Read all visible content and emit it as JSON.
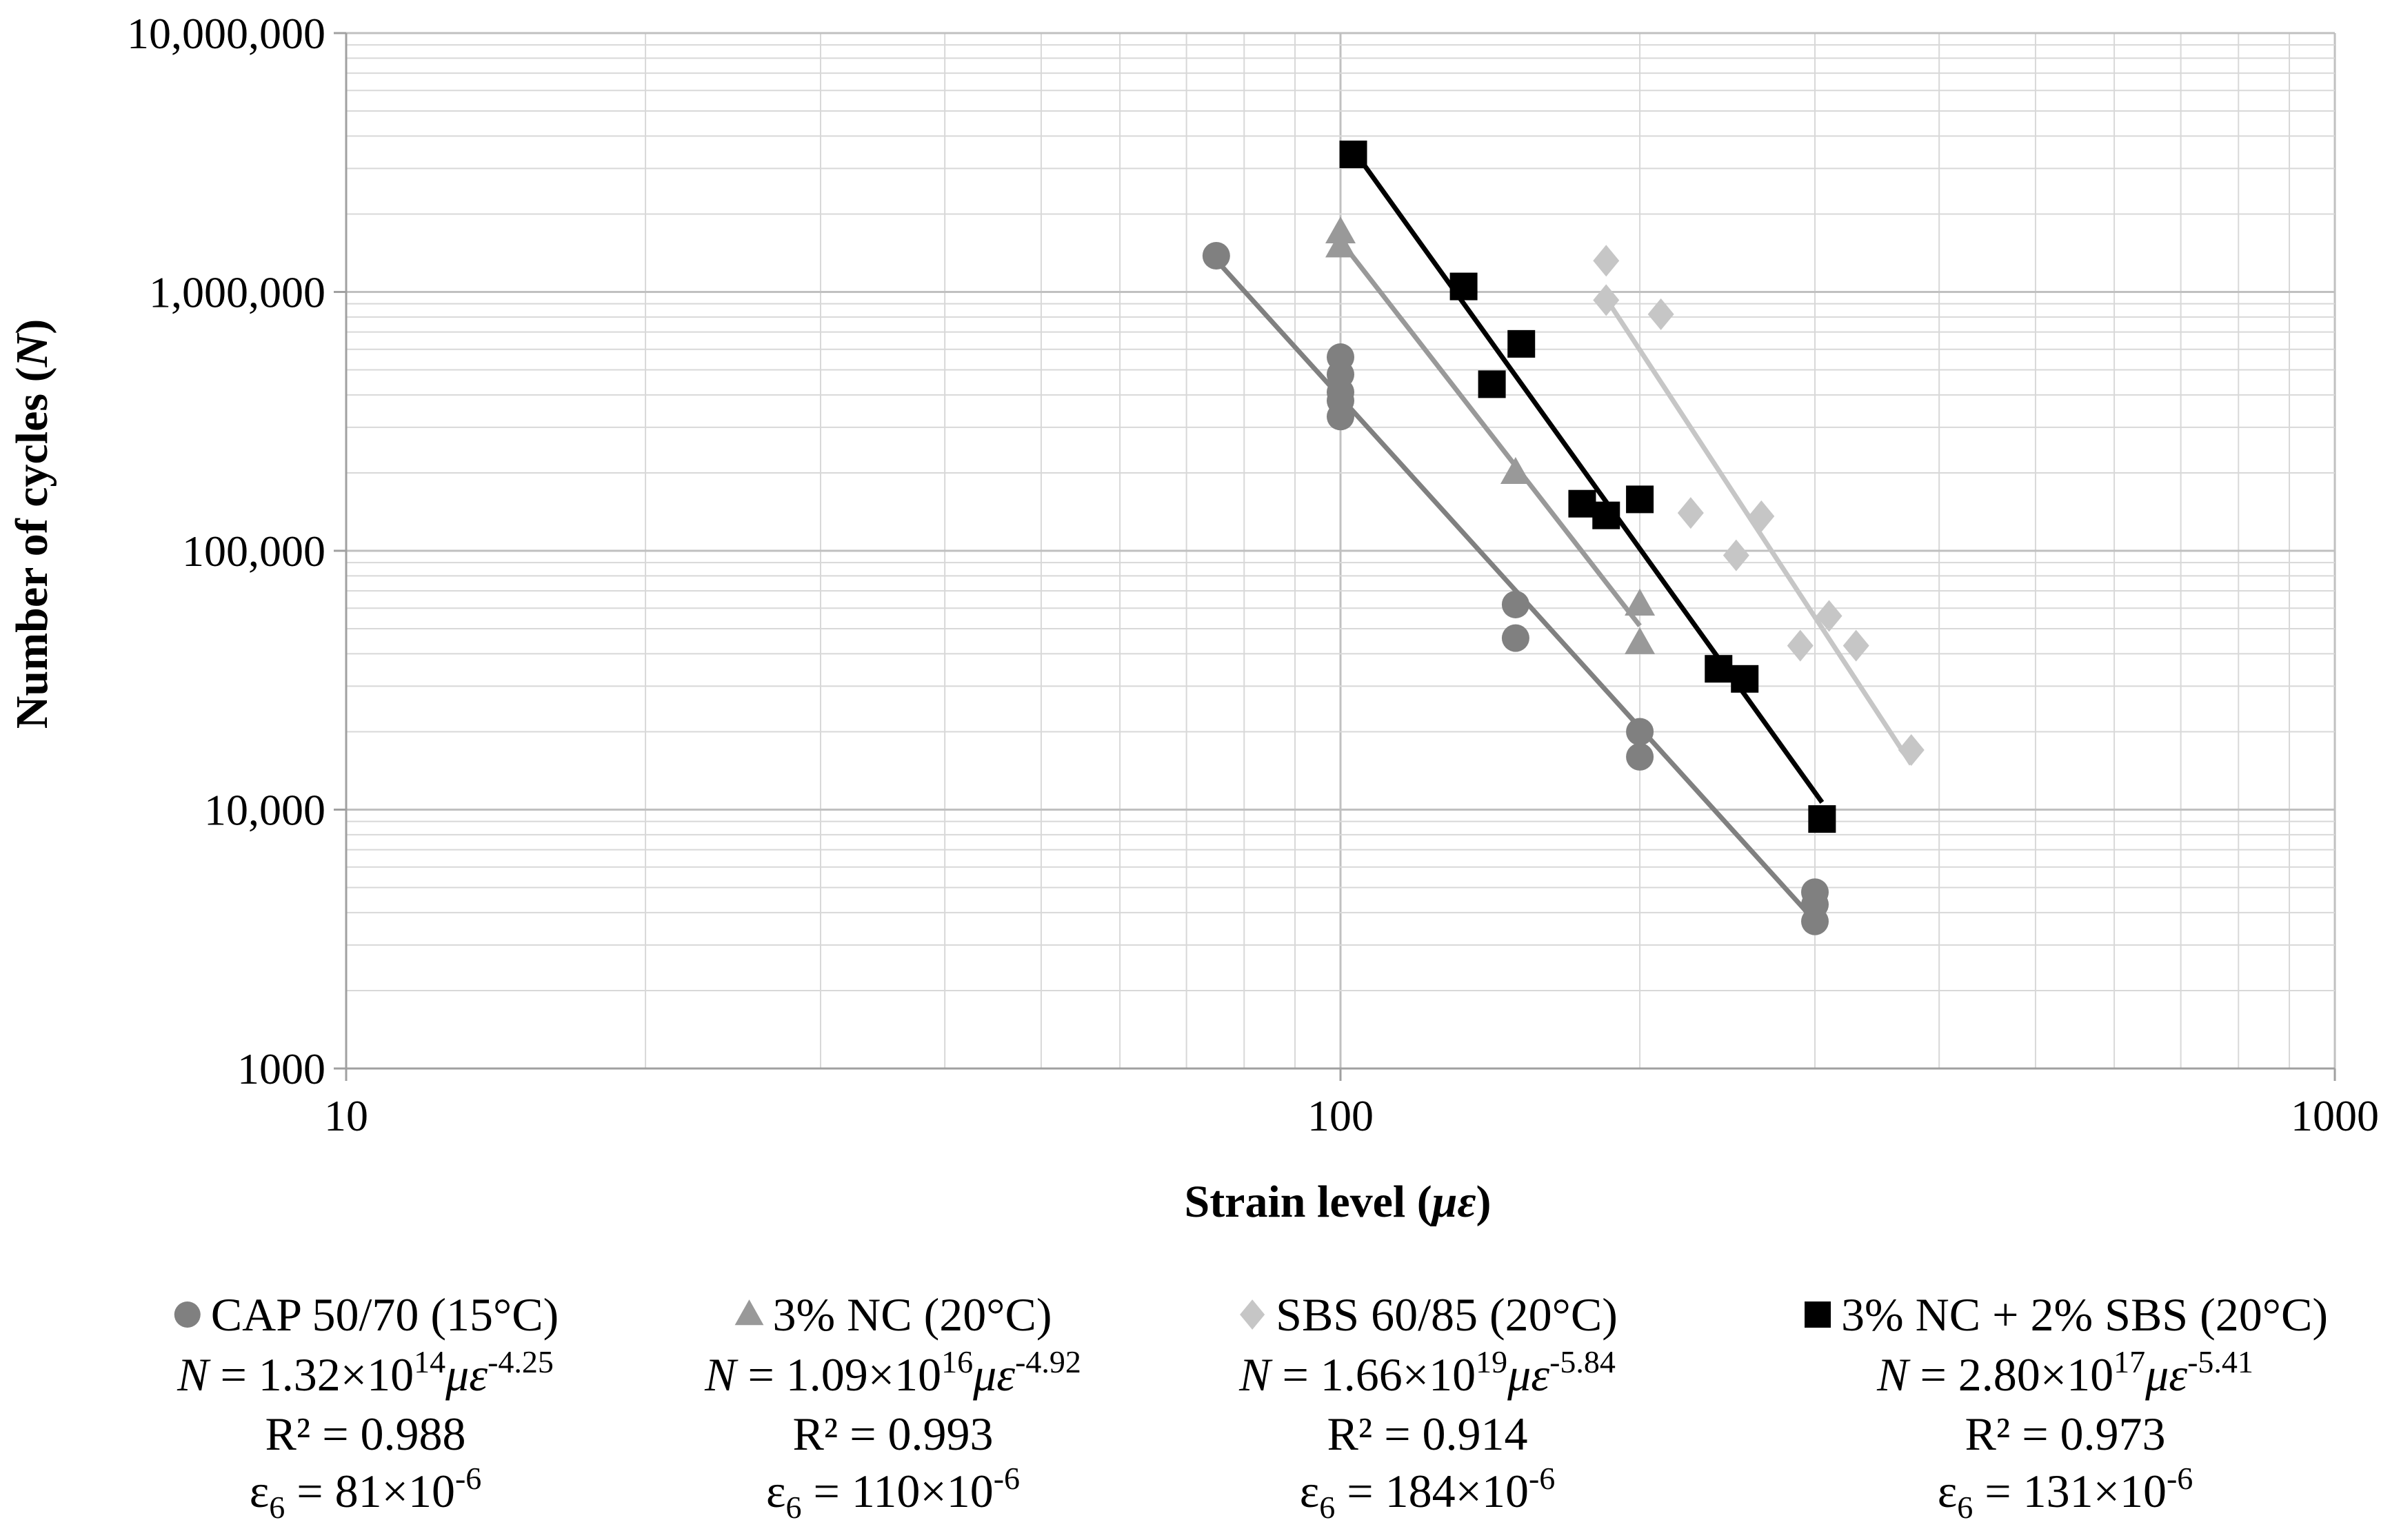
{
  "chart_data": {
    "type": "scatter",
    "xlabel": "Strain level (",
    "xlabel_unit": "με",
    "xlabel_close": ")",
    "ylabel": "Number of cycles (",
    "ylabel_unit": "N",
    "ylabel_close": ")",
    "xscale": "log",
    "yscale": "log",
    "xlim": [
      10,
      1000
    ],
    "ylim": [
      1000,
      10000000
    ],
    "x_ticks": [
      "10",
      "100",
      "1000"
    ],
    "y_ticks": [
      "1000",
      "10,000",
      "100,000",
      "1,000,000",
      "10,000,000"
    ],
    "grid": true,
    "legend_position": "bottom",
    "series": [
      {
        "name": "CAP 50/70 (15°C)",
        "marker": "circle",
        "color": "#808080",
        "points": [
          [
            75,
            1380000
          ],
          [
            100,
            560000
          ],
          [
            100,
            480000
          ],
          [
            100,
            410000
          ],
          [
            100,
            380000
          ],
          [
            100,
            330000
          ],
          [
            150,
            62000
          ],
          [
            150,
            46000
          ],
          [
            200,
            20000
          ],
          [
            200,
            16000
          ],
          [
            300,
            4800
          ],
          [
            300,
            4300
          ],
          [
            300,
            3700
          ]
        ],
        "fit_x": [
          76,
          300
        ],
        "equation_prefix": "N",
        "equation_mid": " = 1.32×10",
        "equation_exp": "14",
        "equation_var": "με",
        "equation_pow": "-4.25",
        "r2": "R² = 0.988",
        "eps_prefix": "ε",
        "eps_sub": "6",
        "eps_mid": " = 81×10",
        "eps_pow": "-6"
      },
      {
        "name": "3% NC (20°C)",
        "marker": "triangle",
        "color": "#999999",
        "points": [
          [
            100,
            1700000
          ],
          [
            100,
            1500000
          ],
          [
            150,
            200000
          ],
          [
            200,
            62000
          ],
          [
            200,
            44000
          ]
        ],
        "fit_x": [
          100,
          200
        ],
        "equation_prefix": "N",
        "equation_mid": " = 1.09×10",
        "equation_exp": "16",
        "equation_var": "με",
        "equation_pow": "-4.92",
        "r2": "R² = 0.993",
        "eps_prefix": "ε",
        "eps_sub": "6",
        "eps_mid": " = 110×10",
        "eps_pow": "-6"
      },
      {
        "name": "SBS 60/85 (20°C)",
        "marker": "diamond",
        "color": "#c6c6c6",
        "points": [
          [
            185,
            1320000
          ],
          [
            185,
            930000
          ],
          [
            210,
            820000
          ],
          [
            225,
            140000
          ],
          [
            250,
            96000
          ],
          [
            265,
            136000
          ],
          [
            290,
            43000
          ],
          [
            310,
            56000
          ],
          [
            330,
            43000
          ],
          [
            375,
            17000
          ]
        ],
        "fit_x": [
          185,
          375
        ],
        "equation_prefix": "N",
        "equation_mid": " = 1.66×10",
        "equation_exp": "19",
        "equation_var": "με",
        "equation_pow": "-5.84",
        "r2": "R² = 0.914",
        "eps_prefix": "ε",
        "eps_sub": "6",
        "eps_mid": " = 184×10",
        "eps_pow": "-6"
      },
      {
        "name": "3% NC + 2% SBS (20°C)",
        "marker": "square",
        "color": "#000000",
        "points": [
          [
            103,
            3400000
          ],
          [
            133,
            1050000
          ],
          [
            142,
            440000
          ],
          [
            152,
            630000
          ],
          [
            175,
            152000
          ],
          [
            185,
            137000
          ],
          [
            200,
            158000
          ],
          [
            240,
            35000
          ],
          [
            255,
            32000
          ],
          [
            305,
            9200
          ]
        ],
        "fit_x": [
          103,
          305
        ],
        "equation_prefix": "N",
        "equation_mid": " = 2.80×10",
        "equation_exp": "17",
        "equation_var": "με",
        "equation_pow": "-5.41",
        "r2": "R² = 0.973",
        "eps_prefix": "ε",
        "eps_sub": "6",
        "eps_mid": " = 131×10",
        "eps_pow": "-6"
      }
    ]
  }
}
